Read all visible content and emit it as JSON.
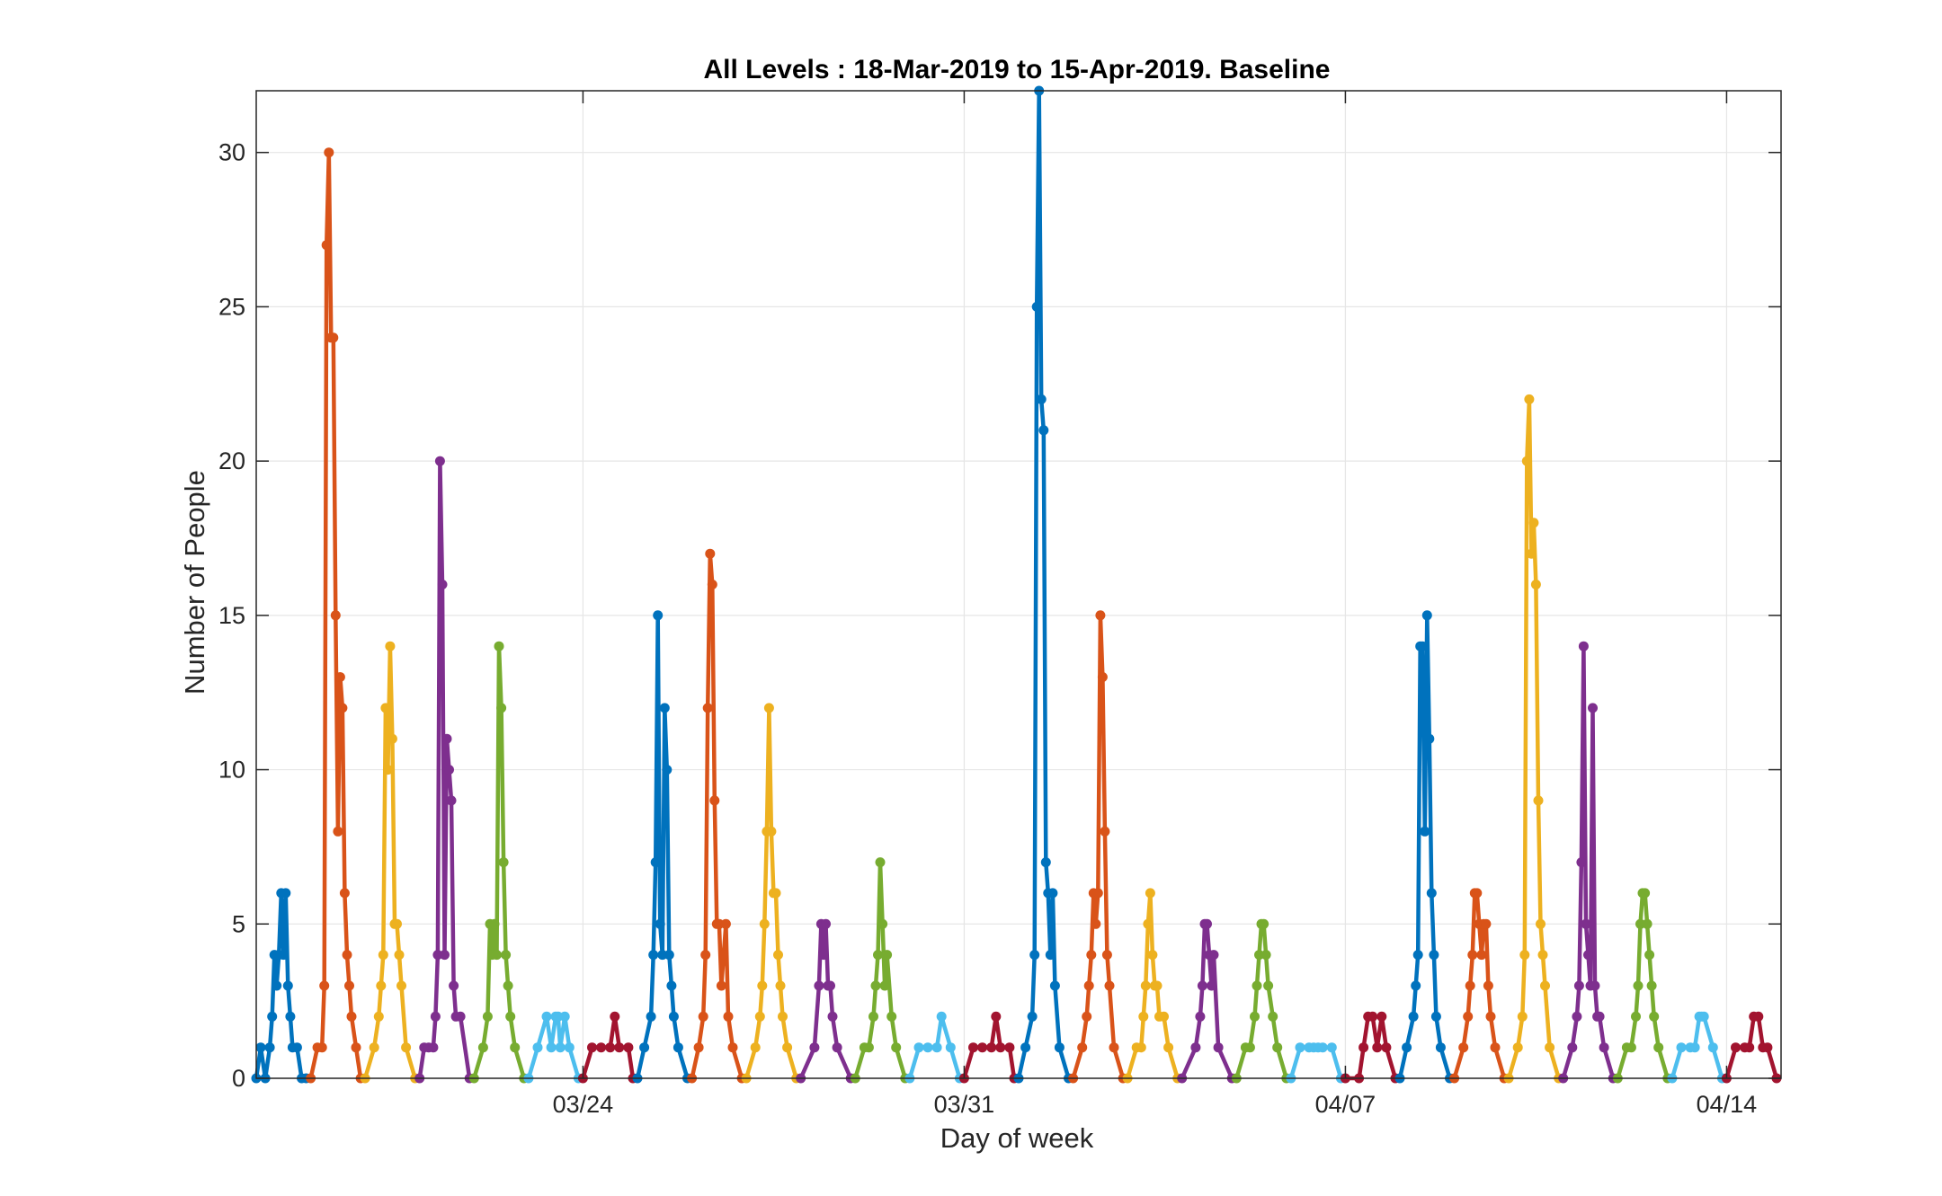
{
  "chart_data": {
    "type": "line",
    "title": "All Levels : 18-Mar-2019 to 15-Apr-2019. Baseline",
    "xlabel": "Day of week",
    "ylabel": "Number of People",
    "x_unit": "date (2019)",
    "xlim": [
      "2019-03-18",
      "2019-04-15"
    ],
    "ylim": [
      0,
      32
    ],
    "yticks": [
      0,
      5,
      10,
      15,
      20,
      25,
      30
    ],
    "xticks": [
      {
        "date": "2019-03-24",
        "label": "03/24"
      },
      {
        "date": "2019-03-31",
        "label": "03/31"
      },
      {
        "date": "2019-04-07",
        "label": "04/07"
      },
      {
        "date": "2019-04-14",
        "label": "04/14"
      }
    ],
    "grid": true,
    "markers": "filled-dots",
    "colors": [
      "#0072BD",
      "#D95319",
      "#EDB120",
      "#7E2F8E",
      "#77AC30",
      "#4DBEEE",
      "#A2142F"
    ],
    "series": [
      {
        "x": [
          "2019-03-18 00:00",
          "2019-03-18 02:00",
          "2019-03-18 04:00",
          "2019-03-18 06:00",
          "2019-03-18 07:00",
          "2019-03-18 08:00",
          "2019-03-18 09:00",
          "2019-03-18 10:00",
          "2019-03-18 11:00",
          "2019-03-18 12:00",
          "2019-03-18 13:00",
          "2019-03-18 14:00",
          "2019-03-18 15:00",
          "2019-03-18 16:00",
          "2019-03-18 18:00",
          "2019-03-18 20:00",
          "2019-03-18 22:00"
        ],
        "y": [
          0,
          1,
          0,
          1,
          2,
          4,
          3,
          4,
          6,
          4,
          6,
          3,
          2,
          1,
          1,
          0,
          0
        ]
      },
      {
        "x": [
          "2019-03-19 00:00",
          "2019-03-19 03:00",
          "2019-03-19 05:00",
          "2019-03-19 06:00",
          "2019-03-19 07:00",
          "2019-03-19 08:00",
          "2019-03-19 09:00",
          "2019-03-19 10:00",
          "2019-03-19 11:00",
          "2019-03-19 12:00",
          "2019-03-19 13:00",
          "2019-03-19 14:00",
          "2019-03-19 15:00",
          "2019-03-19 16:00",
          "2019-03-19 17:00",
          "2019-03-19 18:00",
          "2019-03-19 20:00",
          "2019-03-19 22:00"
        ],
        "y": [
          0,
          1,
          1,
          3,
          27,
          30,
          24,
          24,
          15,
          8,
          13,
          12,
          6,
          4,
          3,
          2,
          1,
          0
        ]
      },
      {
        "x": [
          "2019-03-20 00:00",
          "2019-03-20 04:00",
          "2019-03-20 06:00",
          "2019-03-20 07:00",
          "2019-03-20 08:00",
          "2019-03-20 09:00",
          "2019-03-20 10:00",
          "2019-03-20 11:00",
          "2019-03-20 12:00",
          "2019-03-20 13:00",
          "2019-03-20 14:00",
          "2019-03-20 15:00",
          "2019-03-20 16:00",
          "2019-03-20 18:00",
          "2019-03-20 22:00"
        ],
        "y": [
          0,
          1,
          2,
          3,
          4,
          12,
          10,
          14,
          11,
          5,
          5,
          4,
          3,
          1,
          0
        ]
      },
      {
        "x": [
          "2019-03-21 00:00",
          "2019-03-21 02:00",
          "2019-03-21 04:00",
          "2019-03-21 06:00",
          "2019-03-21 07:00",
          "2019-03-21 08:00",
          "2019-03-21 09:00",
          "2019-03-21 10:00",
          "2019-03-21 11:00",
          "2019-03-21 12:00",
          "2019-03-21 13:00",
          "2019-03-21 14:00",
          "2019-03-21 15:00",
          "2019-03-21 16:00",
          "2019-03-21 18:00",
          "2019-03-21 22:00"
        ],
        "y": [
          0,
          1,
          1,
          1,
          2,
          4,
          20,
          16,
          4,
          11,
          10,
          9,
          3,
          2,
          2,
          0
        ]
      },
      {
        "x": [
          "2019-03-22 00:00",
          "2019-03-22 04:00",
          "2019-03-22 06:00",
          "2019-03-22 07:00",
          "2019-03-22 08:00",
          "2019-03-22 09:00",
          "2019-03-22 10:00",
          "2019-03-22 11:00",
          "2019-03-22 12:00",
          "2019-03-22 13:00",
          "2019-03-22 14:00",
          "2019-03-22 15:00",
          "2019-03-22 16:00",
          "2019-03-22 18:00",
          "2019-03-22 22:00"
        ],
        "y": [
          0,
          1,
          2,
          5,
          4,
          5,
          4,
          14,
          12,
          7,
          4,
          3,
          2,
          1,
          0
        ]
      },
      {
        "x": [
          "2019-03-23 00:00",
          "2019-03-23 04:00",
          "2019-03-23 08:00",
          "2019-03-23 10:00",
          "2019-03-23 12:00",
          "2019-03-23 13:00",
          "2019-03-23 14:00",
          "2019-03-23 16:00",
          "2019-03-23 18:00",
          "2019-03-23 22:00"
        ],
        "y": [
          0,
          1,
          2,
          1,
          2,
          2,
          1,
          2,
          1,
          0
        ]
      },
      {
        "x": [
          "2019-03-24 00:00",
          "2019-03-24 04:00",
          "2019-03-24 08:00",
          "2019-03-24 12:00",
          "2019-03-24 14:00",
          "2019-03-24 16:00",
          "2019-03-24 20:00",
          "2019-03-24 22:00"
        ],
        "y": [
          0,
          1,
          1,
          1,
          2,
          1,
          1,
          0
        ]
      },
      {
        "x": [
          "2019-03-25 00:00",
          "2019-03-25 03:00",
          "2019-03-25 06:00",
          "2019-03-25 07:00",
          "2019-03-25 08:00",
          "2019-03-25 09:00",
          "2019-03-25 10:00",
          "2019-03-25 11:00",
          "2019-03-25 12:00",
          "2019-03-25 13:00",
          "2019-03-25 14:00",
          "2019-03-25 15:00",
          "2019-03-25 16:00",
          "2019-03-25 18:00",
          "2019-03-25 22:00"
        ],
        "y": [
          0,
          1,
          2,
          4,
          7,
          15,
          5,
          4,
          12,
          10,
          4,
          3,
          2,
          1,
          0
        ]
      },
      {
        "x": [
          "2019-03-26 00:00",
          "2019-03-26 03:00",
          "2019-03-26 05:00",
          "2019-03-26 06:00",
          "2019-03-26 07:00",
          "2019-03-26 08:00",
          "2019-03-26 09:00",
          "2019-03-26 10:00",
          "2019-03-26 11:00",
          "2019-03-26 12:00",
          "2019-03-26 13:00",
          "2019-03-26 14:00",
          "2019-03-26 15:00",
          "2019-03-26 16:00",
          "2019-03-26 18:00",
          "2019-03-26 22:00"
        ],
        "y": [
          0,
          1,
          2,
          4,
          12,
          17,
          16,
          9,
          5,
          5,
          3,
          4,
          5,
          2,
          1,
          0
        ]
      },
      {
        "x": [
          "2019-03-27 00:00",
          "2019-03-27 04:00",
          "2019-03-27 06:00",
          "2019-03-27 07:00",
          "2019-03-27 08:00",
          "2019-03-27 09:00",
          "2019-03-27 10:00",
          "2019-03-27 11:00",
          "2019-03-27 12:00",
          "2019-03-27 13:00",
          "2019-03-27 14:00",
          "2019-03-27 15:00",
          "2019-03-27 16:00",
          "2019-03-27 18:00",
          "2019-03-27 22:00"
        ],
        "y": [
          0,
          1,
          2,
          3,
          5,
          8,
          12,
          8,
          6,
          6,
          4,
          3,
          2,
          1,
          0
        ]
      },
      {
        "x": [
          "2019-03-28 00:00",
          "2019-03-28 06:00",
          "2019-03-28 08:00",
          "2019-03-28 09:00",
          "2019-03-28 10:00",
          "2019-03-28 11:00",
          "2019-03-28 12:00",
          "2019-03-28 13:00",
          "2019-03-28 14:00",
          "2019-03-28 16:00",
          "2019-03-28 22:00"
        ],
        "y": [
          0,
          1,
          3,
          5,
          4,
          5,
          3,
          3,
          2,
          1,
          0
        ]
      },
      {
        "x": [
          "2019-03-29 00:00",
          "2019-03-29 04:00",
          "2019-03-29 06:00",
          "2019-03-29 08:00",
          "2019-03-29 09:00",
          "2019-03-29 10:00",
          "2019-03-29 11:00",
          "2019-03-29 12:00",
          "2019-03-29 13:00",
          "2019-03-29 14:00",
          "2019-03-29 16:00",
          "2019-03-29 18:00",
          "2019-03-29 22:00"
        ],
        "y": [
          0,
          1,
          1,
          2,
          3,
          4,
          7,
          5,
          3,
          4,
          2,
          1,
          0
        ]
      },
      {
        "x": [
          "2019-03-30 00:00",
          "2019-03-30 04:00",
          "2019-03-30 08:00",
          "2019-03-30 12:00",
          "2019-03-30 14:00",
          "2019-03-30 18:00",
          "2019-03-30 22:00"
        ],
        "y": [
          0,
          1,
          1,
          1,
          2,
          1,
          0
        ]
      },
      {
        "x": [
          "2019-03-31 00:00",
          "2019-03-31 04:00",
          "2019-03-31 08:00",
          "2019-03-31 12:00",
          "2019-03-31 14:00",
          "2019-03-31 16:00",
          "2019-03-31 20:00",
          "2019-03-31 22:00"
        ],
        "y": [
          0,
          1,
          1,
          1,
          2,
          1,
          1,
          0
        ]
      },
      {
        "x": [
          "2019-04-01 00:00",
          "2019-04-01 03:00",
          "2019-04-01 06:00",
          "2019-04-01 07:00",
          "2019-04-01 08:00",
          "2019-04-01 09:00",
          "2019-04-01 10:00",
          "2019-04-01 11:00",
          "2019-04-01 12:00",
          "2019-04-01 13:00",
          "2019-04-01 14:00",
          "2019-04-01 15:00",
          "2019-04-01 16:00",
          "2019-04-01 18:00",
          "2019-04-01 22:00"
        ],
        "y": [
          0,
          1,
          2,
          4,
          25,
          32,
          22,
          21,
          7,
          6,
          4,
          6,
          3,
          1,
          0
        ]
      },
      {
        "x": [
          "2019-04-02 00:00",
          "2019-04-02 04:00",
          "2019-04-02 06:00",
          "2019-04-02 07:00",
          "2019-04-02 08:00",
          "2019-04-02 09:00",
          "2019-04-02 10:00",
          "2019-04-02 11:00",
          "2019-04-02 12:00",
          "2019-04-02 13:00",
          "2019-04-02 14:00",
          "2019-04-02 15:00",
          "2019-04-02 16:00",
          "2019-04-02 18:00",
          "2019-04-02 22:00"
        ],
        "y": [
          0,
          1,
          2,
          3,
          4,
          6,
          5,
          6,
          15,
          13,
          8,
          4,
          3,
          1,
          0
        ]
      },
      {
        "x": [
          "2019-04-03 00:00",
          "2019-04-03 04:00",
          "2019-04-03 06:00",
          "2019-04-03 07:00",
          "2019-04-03 08:00",
          "2019-04-03 09:00",
          "2019-04-03 10:00",
          "2019-04-03 11:00",
          "2019-04-03 12:00",
          "2019-04-03 13:00",
          "2019-04-03 14:00",
          "2019-04-03 16:00",
          "2019-04-03 18:00",
          "2019-04-03 22:00"
        ],
        "y": [
          0,
          1,
          1,
          2,
          3,
          5,
          6,
          4,
          3,
          3,
          2,
          2,
          1,
          0
        ]
      },
      {
        "x": [
          "2019-04-04 00:00",
          "2019-04-04 06:00",
          "2019-04-04 08:00",
          "2019-04-04 09:00",
          "2019-04-04 10:00",
          "2019-04-04 11:00",
          "2019-04-04 12:00",
          "2019-04-04 13:00",
          "2019-04-04 14:00",
          "2019-04-04 16:00",
          "2019-04-04 22:00"
        ],
        "y": [
          0,
          1,
          2,
          3,
          5,
          5,
          4,
          3,
          4,
          1,
          0
        ]
      },
      {
        "x": [
          "2019-04-05 00:00",
          "2019-04-05 04:00",
          "2019-04-05 06:00",
          "2019-04-05 08:00",
          "2019-04-05 09:00",
          "2019-04-05 10:00",
          "2019-04-05 11:00",
          "2019-04-05 12:00",
          "2019-04-05 13:00",
          "2019-04-05 14:00",
          "2019-04-05 16:00",
          "2019-04-05 18:00",
          "2019-04-05 22:00"
        ],
        "y": [
          0,
          1,
          1,
          2,
          3,
          4,
          5,
          5,
          4,
          3,
          2,
          1,
          0
        ]
      },
      {
        "x": [
          "2019-04-06 00:00",
          "2019-04-06 04:00",
          "2019-04-06 08:00",
          "2019-04-06 10:00",
          "2019-04-06 12:00",
          "2019-04-06 14:00",
          "2019-04-06 18:00",
          "2019-04-06 22:00"
        ],
        "y": [
          0,
          1,
          1,
          1,
          1,
          1,
          1,
          0
        ]
      },
      {
        "x": [
          "2019-04-07 00:00",
          "2019-04-07 06:00",
          "2019-04-07 08:00",
          "2019-04-07 10:00",
          "2019-04-07 12:00",
          "2019-04-07 14:00",
          "2019-04-07 16:00",
          "2019-04-07 18:00",
          "2019-04-07 22:00"
        ],
        "y": [
          0,
          0,
          1,
          2,
          2,
          1,
          2,
          1,
          0
        ]
      },
      {
        "x": [
          "2019-04-08 00:00",
          "2019-04-08 03:00",
          "2019-04-08 06:00",
          "2019-04-08 07:00",
          "2019-04-08 08:00",
          "2019-04-08 09:00",
          "2019-04-08 10:00",
          "2019-04-08 11:00",
          "2019-04-08 12:00",
          "2019-04-08 13:00",
          "2019-04-08 14:00",
          "2019-04-08 15:00",
          "2019-04-08 16:00",
          "2019-04-08 18:00",
          "2019-04-08 22:00"
        ],
        "y": [
          0,
          1,
          2,
          3,
          4,
          14,
          14,
          8,
          15,
          11,
          6,
          4,
          2,
          1,
          0
        ]
      },
      {
        "x": [
          "2019-04-09 00:00",
          "2019-04-09 04:00",
          "2019-04-09 06:00",
          "2019-04-09 07:00",
          "2019-04-09 08:00",
          "2019-04-09 09:00",
          "2019-04-09 10:00",
          "2019-04-09 11:00",
          "2019-04-09 12:00",
          "2019-04-09 13:00",
          "2019-04-09 14:00",
          "2019-04-09 15:00",
          "2019-04-09 16:00",
          "2019-04-09 18:00",
          "2019-04-09 22:00"
        ],
        "y": [
          0,
          1,
          2,
          3,
          4,
          6,
          6,
          5,
          4,
          5,
          5,
          3,
          2,
          1,
          0
        ]
      },
      {
        "x": [
          "2019-04-10 00:00",
          "2019-04-10 04:00",
          "2019-04-10 06:00",
          "2019-04-10 07:00",
          "2019-04-10 08:00",
          "2019-04-10 09:00",
          "2019-04-10 10:00",
          "2019-04-10 11:00",
          "2019-04-10 12:00",
          "2019-04-10 13:00",
          "2019-04-10 14:00",
          "2019-04-10 15:00",
          "2019-04-10 16:00",
          "2019-04-10 18:00",
          "2019-04-10 22:00"
        ],
        "y": [
          0,
          1,
          2,
          4,
          20,
          22,
          17,
          18,
          16,
          9,
          5,
          4,
          3,
          1,
          0
        ]
      },
      {
        "x": [
          "2019-04-11 00:00",
          "2019-04-11 04:00",
          "2019-04-11 06:00",
          "2019-04-11 07:00",
          "2019-04-11 08:00",
          "2019-04-11 09:00",
          "2019-04-11 10:00",
          "2019-04-11 11:00",
          "2019-04-11 12:00",
          "2019-04-11 13:00",
          "2019-04-11 14:00",
          "2019-04-11 15:00",
          "2019-04-11 16:00",
          "2019-04-11 18:00",
          "2019-04-11 22:00"
        ],
        "y": [
          0,
          1,
          2,
          3,
          7,
          14,
          5,
          4,
          3,
          12,
          3,
          2,
          2,
          1,
          0
        ]
      },
      {
        "x": [
          "2019-04-12 00:00",
          "2019-04-12 04:00",
          "2019-04-12 06:00",
          "2019-04-12 08:00",
          "2019-04-12 09:00",
          "2019-04-12 10:00",
          "2019-04-12 11:00",
          "2019-04-12 12:00",
          "2019-04-12 13:00",
          "2019-04-12 14:00",
          "2019-04-12 15:00",
          "2019-04-12 16:00",
          "2019-04-12 18:00",
          "2019-04-12 22:00"
        ],
        "y": [
          0,
          1,
          1,
          2,
          3,
          5,
          6,
          6,
          5,
          4,
          3,
          2,
          1,
          0
        ]
      },
      {
        "x": [
          "2019-04-13 00:00",
          "2019-04-13 04:00",
          "2019-04-13 08:00",
          "2019-04-13 10:00",
          "2019-04-13 12:00",
          "2019-04-13 13:00",
          "2019-04-13 14:00",
          "2019-04-13 18:00",
          "2019-04-13 22:00"
        ],
        "y": [
          0,
          1,
          1,
          1,
          2,
          2,
          2,
          1,
          0
        ]
      },
      {
        "x": [
          "2019-04-14 00:00",
          "2019-04-14 04:00",
          "2019-04-14 08:00",
          "2019-04-14 10:00",
          "2019-04-14 12:00",
          "2019-04-14 14:00",
          "2019-04-14 16:00",
          "2019-04-14 18:00",
          "2019-04-14 22:00"
        ],
        "y": [
          0,
          1,
          1,
          1,
          2,
          2,
          1,
          1,
          0
        ]
      }
    ]
  }
}
